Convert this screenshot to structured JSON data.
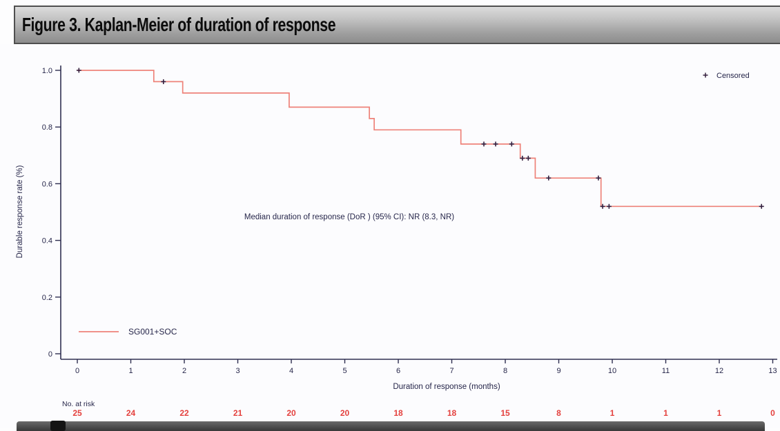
{
  "header": {
    "title": "Figure 3. Kaplan-Meier of duration of response"
  },
  "chart_data": {
    "type": "line",
    "subtype": "kaplan-meier-step",
    "xlabel": "Duration of response (months)",
    "ylabel": "Durable response rate (%)",
    "xlim": [
      0,
      13
    ],
    "ylim": [
      0,
      1.0
    ],
    "xticks": [
      0,
      1,
      2,
      3,
      4,
      5,
      6,
      7,
      8,
      9,
      10,
      11,
      12,
      13
    ],
    "xtick_labels": [
      "0",
      "1",
      "2",
      "3",
      "4",
      "5",
      "6",
      "7",
      "8",
      "9",
      "10",
      "11",
      "12",
      "13"
    ],
    "yticks": [
      0,
      0.2,
      0.4,
      0.6,
      0.8,
      1.0
    ],
    "ytick_labels": [
      "0",
      "0.2",
      "0.4",
      "0.6",
      "0.8",
      "1.0"
    ],
    "grid": false,
    "annotation": "Median duration of response (DoR ) (95% CI): NR (8.3, NR)",
    "censored_legend": "Censored",
    "series": [
      {
        "name": "SG001+SOC",
        "color": "#ee8279",
        "steps": [
          [
            0,
            1.0
          ],
          [
            1.43,
            1.0
          ],
          [
            1.43,
            0.96
          ],
          [
            1.97,
            0.96
          ],
          [
            1.97,
            0.92
          ],
          [
            3.96,
            0.92
          ],
          [
            3.96,
            0.87
          ],
          [
            5.46,
            0.87
          ],
          [
            5.46,
            0.83
          ],
          [
            5.55,
            0.83
          ],
          [
            5.55,
            0.79
          ],
          [
            7.17,
            0.79
          ],
          [
            7.17,
            0.74
          ],
          [
            8.28,
            0.74
          ],
          [
            8.28,
            0.69
          ],
          [
            8.56,
            0.69
          ],
          [
            8.56,
            0.62
          ],
          [
            9.79,
            0.62
          ],
          [
            9.79,
            0.52
          ],
          [
            12.79,
            0.52
          ]
        ],
        "censored": [
          [
            0.03,
            1.0
          ],
          [
            1.61,
            0.96
          ],
          [
            7.6,
            0.74
          ],
          [
            7.82,
            0.74
          ],
          [
            8.12,
            0.74
          ],
          [
            8.32,
            0.69
          ],
          [
            8.43,
            0.69
          ],
          [
            8.81,
            0.62
          ],
          [
            9.74,
            0.62
          ],
          [
            9.82,
            0.52
          ],
          [
            9.94,
            0.52
          ],
          [
            12.79,
            0.52
          ]
        ]
      }
    ],
    "at_risk": {
      "label": "No. at risk",
      "values": [
        "25",
        "24",
        "22",
        "21",
        "20",
        "20",
        "18",
        "18",
        "15",
        "8",
        "1",
        "1",
        "1",
        "0"
      ],
      "color": "#e4413e"
    },
    "colors": {
      "axis": "#2e2e50",
      "text": "#26264a",
      "censor_marker": "#35203f"
    }
  }
}
